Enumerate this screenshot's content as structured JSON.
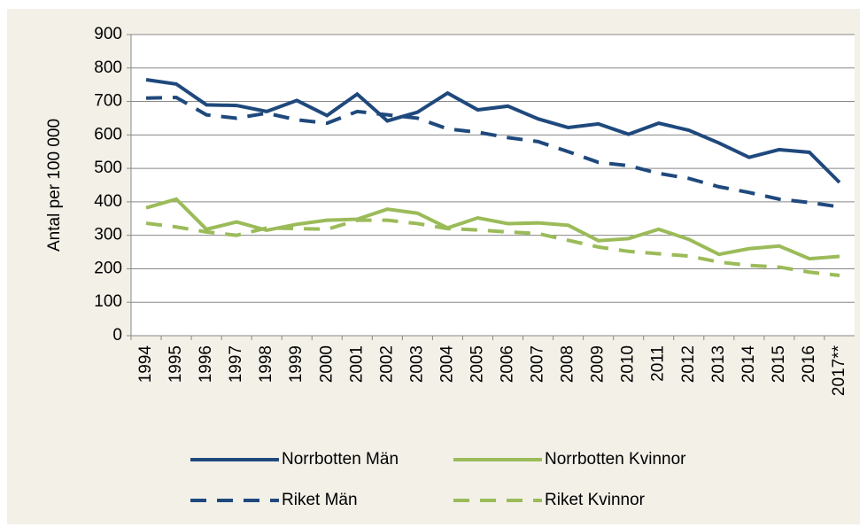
{
  "chart_data": {
    "type": "line",
    "y_label": "Antal per 100 000",
    "categories": [
      "1994",
      "1995",
      "1996",
      "1997",
      "1998",
      "1999",
      "2000",
      "2001",
      "2002",
      "2003",
      "2004",
      "2005",
      "2006",
      "2007",
      "2008",
      "2009",
      "2010",
      "2011",
      "2012",
      "2013",
      "2014",
      "2015",
      "2016",
      "2017**"
    ],
    "series": [
      {
        "name": "Norrbotten Män",
        "color": "#1f497d",
        "dash": false,
        "values": [
          765,
          752,
          690,
          688,
          670,
          703,
          658,
          722,
          642,
          668,
          725,
          675,
          686,
          648,
          622,
          633,
          602,
          635,
          614,
          576,
          533,
          556,
          548,
          458
        ]
      },
      {
        "name": "Norrbotten Kvinnor",
        "color": "#9bbb59",
        "dash": false,
        "values": [
          382,
          408,
          318,
          340,
          315,
          333,
          345,
          348,
          378,
          366,
          322,
          352,
          335,
          337,
          330,
          284,
          290,
          318,
          288,
          243,
          260,
          268,
          230,
          237
        ]
      },
      {
        "name": "Riket Män",
        "color": "#1f497d",
        "dash": true,
        "values": [
          710,
          712,
          660,
          650,
          665,
          645,
          635,
          670,
          660,
          650,
          618,
          608,
          592,
          580,
          550,
          518,
          508,
          485,
          470,
          445,
          428,
          408,
          398,
          385
        ]
      },
      {
        "name": "Riket Kvinnor",
        "color": "#9bbb59",
        "dash": true,
        "values": [
          336,
          325,
          310,
          300,
          322,
          320,
          318,
          345,
          345,
          335,
          320,
          316,
          310,
          305,
          285,
          265,
          252,
          245,
          238,
          220,
          210,
          205,
          190,
          180
        ]
      }
    ],
    "ylim": [
      0,
      900
    ],
    "yticks": [
      0,
      100,
      200,
      300,
      400,
      500,
      600,
      700,
      800,
      900
    ],
    "grid": true
  }
}
